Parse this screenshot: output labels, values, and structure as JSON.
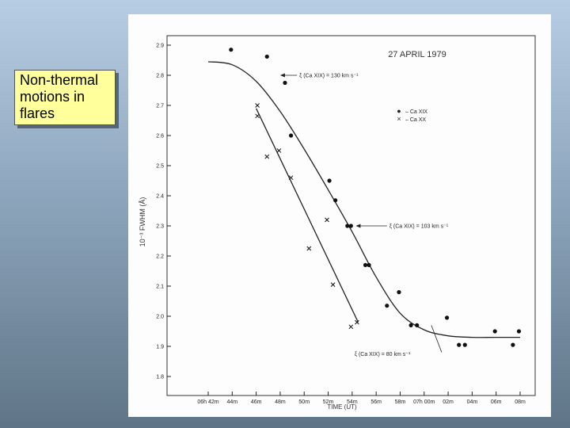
{
  "slide": {
    "title": "Non-thermal motions in flares"
  },
  "chart_data": {
    "type": "scatter",
    "title": "27 APRIL 1979",
    "xlabel": "TIME (UT)",
    "ylabel": "10⁻³ FWHM (Å)",
    "xlim": [
      41,
      69
    ],
    "ylim": [
      1.8,
      2.92
    ],
    "x_ticks": [
      {
        "v": 42,
        "label": "06h 42m"
      },
      {
        "v": 44,
        "label": "44m"
      },
      {
        "v": 46,
        "label": "46m"
      },
      {
        "v": 48,
        "label": "48m"
      },
      {
        "v": 50,
        "label": "50m"
      },
      {
        "v": 52,
        "label": "52m"
      },
      {
        "v": 54,
        "label": "54m"
      },
      {
        "v": 56,
        "label": "56m"
      },
      {
        "v": 58,
        "label": "58m"
      },
      {
        "v": 60,
        "label": "07h 00m"
      },
      {
        "v": 62,
        "label": "02m"
      },
      {
        "v": 64,
        "label": "04m"
      },
      {
        "v": 66,
        "label": "06m"
      },
      {
        "v": 68,
        "label": "08m"
      }
    ],
    "y_ticks": [
      1.8,
      1.9,
      2.0,
      2.1,
      2.2,
      2.3,
      2.4,
      2.5,
      2.6,
      2.7,
      2.8,
      2.9
    ],
    "legend": [
      {
        "symbol": "●",
        "label": "– Ca XIX"
      },
      {
        "symbol": "×",
        "label": "– Ca XX"
      }
    ],
    "series": [
      {
        "name": "Ca XIX",
        "marker": "dot",
        "points": [
          [
            43.9,
            2.885
          ],
          [
            46.9,
            2.862
          ],
          [
            48.4,
            2.775
          ],
          [
            48.9,
            2.6
          ],
          [
            52.1,
            2.45
          ],
          [
            52.6,
            2.385
          ],
          [
            53.6,
            2.3
          ],
          [
            53.9,
            2.3
          ],
          [
            55.1,
            2.17
          ],
          [
            55.4,
            2.17
          ],
          [
            56.9,
            2.035
          ],
          [
            57.9,
            2.08
          ],
          [
            58.9,
            1.97
          ],
          [
            59.4,
            1.97
          ],
          [
            61.9,
            1.995
          ],
          [
            62.9,
            1.905
          ],
          [
            63.4,
            1.905
          ],
          [
            65.9,
            1.95
          ],
          [
            67.4,
            1.905
          ],
          [
            67.9,
            1.95
          ]
        ]
      },
      {
        "name": "Ca XX",
        "marker": "x",
        "points": [
          [
            46.1,
            2.7
          ],
          [
            46.1,
            2.665
          ],
          [
            46.9,
            2.53
          ],
          [
            47.9,
            2.55
          ],
          [
            48.9,
            2.46
          ],
          [
            50.4,
            2.225
          ],
          [
            51.9,
            2.32
          ],
          [
            52.4,
            2.105
          ],
          [
            53.9,
            1.965
          ],
          [
            54.4,
            1.98
          ]
        ]
      }
    ],
    "fits": [
      {
        "marker": "curve",
        "points": [
          [
            42,
            2.845
          ],
          [
            44,
            2.835
          ],
          [
            46,
            2.78
          ],
          [
            48,
            2.68
          ],
          [
            50,
            2.555
          ],
          [
            52,
            2.42
          ],
          [
            54,
            2.28
          ],
          [
            56,
            2.13
          ],
          [
            58,
            2.01
          ],
          [
            60,
            1.955
          ],
          [
            62,
            1.935
          ],
          [
            64,
            1.93
          ],
          [
            66,
            1.93
          ],
          [
            68,
            1.93
          ]
        ]
      },
      {
        "marker": "line",
        "points": [
          [
            46,
            2.69
          ],
          [
            54.5,
            1.98
          ]
        ]
      }
    ],
    "annotations": [
      {
        "text": "ξ (Ca XIX) = 130 km s⁻¹",
        "x": 49.6,
        "y": 2.8,
        "arrow_to_x": 48.0
      },
      {
        "text": "ξ (Ca XIX) = 103 km s⁻¹",
        "x": 57.1,
        "y": 2.3,
        "arrow_to_x": 54.3
      },
      {
        "text": "ξ (Ca XIX) = 80 km s⁻¹",
        "x": 54.2,
        "y": 1.875,
        "arrow_to_x": 60.6,
        "arrow_to_y": 1.97
      }
    ]
  }
}
